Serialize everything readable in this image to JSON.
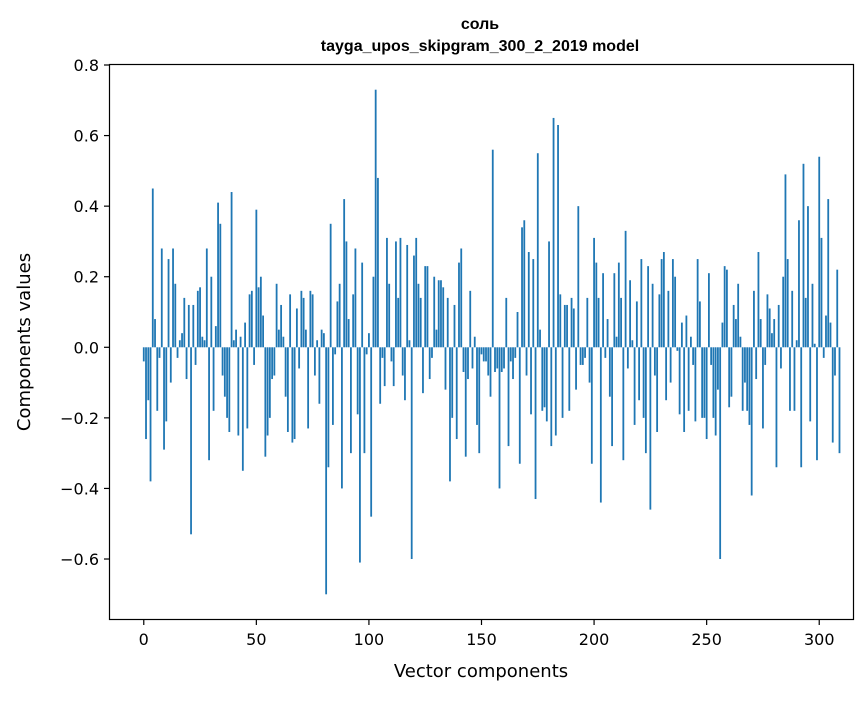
{
  "chart_data": {
    "type": "bar",
    "title": "соль",
    "subtitle": "tayga_upos_skipgram_300_2_2019 model",
    "xlabel": "Vector components",
    "ylabel": "Components values",
    "xlim": [
      -15,
      315
    ],
    "ylim": [
      -0.77,
      0.8
    ],
    "xticks": [
      0,
      50,
      100,
      150,
      200,
      250,
      300
    ],
    "xtick_labels": [
      "0",
      "50",
      "100",
      "150",
      "200",
      "250",
      "300"
    ],
    "yticks": [
      -0.6,
      -0.4,
      -0.2,
      0.0,
      0.2,
      0.4,
      0.6,
      0.8
    ],
    "ytick_labels": [
      "−0.6",
      "−0.4",
      "−0.2",
      "0.0",
      "0.2",
      "0.4",
      "0.6",
      "0.8"
    ],
    "bar_color": "#1f77b4",
    "grid": false,
    "values": [
      -0.04,
      -0.26,
      -0.15,
      -0.38,
      0.45,
      0.08,
      -0.18,
      -0.03,
      0.28,
      -0.29,
      -0.21,
      0.25,
      -0.1,
      0.28,
      0.18,
      -0.03,
      0.02,
      0.04,
      0.14,
      -0.09,
      0.12,
      -0.53,
      0.12,
      -0.05,
      0.16,
      0.17,
      0.03,
      0.02,
      0.28,
      -0.32,
      0.2,
      -0.18,
      0.06,
      0.41,
      0.35,
      -0.08,
      -0.14,
      -0.2,
      -0.24,
      0.44,
      0.02,
      0.05,
      -0.25,
      0.03,
      -0.35,
      0.07,
      -0.23,
      0.15,
      0.16,
      -0.05,
      0.39,
      0.17,
      0.2,
      0.09,
      -0.31,
      -0.25,
      -0.2,
      -0.09,
      -0.08,
      0.18,
      0.05,
      0.12,
      0.03,
      -0.14,
      -0.24,
      0.15,
      -0.27,
      -0.26,
      0.11,
      -0.06,
      0.16,
      0.14,
      0.05,
      -0.23,
      0.16,
      0.15,
      -0.08,
      0.02,
      -0.16,
      0.05,
      0.04,
      -0.7,
      -0.34,
      0.35,
      -0.22,
      -0.02,
      0.13,
      0.18,
      -0.4,
      0.42,
      0.3,
      0.08,
      -0.3,
      0.15,
      0.28,
      -0.19,
      -0.61,
      0.24,
      -0.3,
      -0.02,
      0.04,
      -0.48,
      0.2,
      0.73,
      0.48,
      -0.16,
      -0.03,
      -0.11,
      0.31,
      0.18,
      -0.04,
      -0.11,
      0.3,
      0.14,
      0.31,
      -0.08,
      -0.15,
      0.29,
      0.02,
      -0.6,
      0.26,
      0.31,
      0.18,
      0.14,
      -0.13,
      0.23,
      0.23,
      -0.09,
      -0.03,
      0.2,
      0.05,
      0.19,
      0.19,
      0.17,
      -0.12,
      0.14,
      -0.38,
      -0.2,
      0.12,
      -0.26,
      0.24,
      0.28,
      -0.07,
      -0.31,
      -0.09,
      0.16,
      -0.06,
      0.03,
      -0.22,
      -0.3,
      -0.02,
      -0.04,
      -0.04,
      -0.08,
      -0.14,
      0.56,
      -0.07,
      -0.06,
      -0.4,
      -0.07,
      -0.06,
      0.14,
      -0.28,
      -0.04,
      -0.09,
      -0.03,
      0.1,
      -0.33,
      0.34,
      0.36,
      -0.08,
      0.27,
      -0.19,
      0.25,
      -0.43,
      0.55,
      0.05,
      -0.18,
      -0.17,
      -0.21,
      0.3,
      -0.28,
      0.65,
      -0.25,
      0.63,
      0.15,
      -0.2,
      0.12,
      0.12,
      -0.18,
      0.14,
      0.11,
      -0.12,
      0.4,
      -0.05,
      -0.05,
      -0.03,
      0.14,
      -0.1,
      -0.33,
      0.31,
      0.24,
      0.14,
      -0.44,
      0.21,
      -0.03,
      0.08,
      -0.14,
      -0.28,
      0.21,
      0.03,
      0.24,
      0.14,
      -0.32,
      0.33,
      -0.06,
      0.19,
      0.02,
      -0.22,
      0.13,
      -0.15,
      0.25,
      -0.2,
      -0.3,
      0.23,
      -0.46,
      0.18,
      -0.08,
      -0.24,
      0.15,
      0.25,
      0.27,
      -0.15,
      0.16,
      -0.1,
      0.25,
      0.2,
      -0.01,
      -0.19,
      0.07,
      -0.24,
      0.09,
      -0.18,
      0.03,
      -0.05,
      -0.21,
      0.25,
      0.13,
      -0.2,
      -0.2,
      -0.26,
      0.21,
      -0.05,
      -0.2,
      -0.25,
      -0.12,
      -0.6,
      0.07,
      0.23,
      0.22,
      -0.17,
      -0.14,
      0.12,
      0.08,
      0.18,
      0.03,
      -0.18,
      -0.1,
      -0.18,
      -0.22,
      -0.42,
      0.16,
      -0.09,
      0.27,
      0.08,
      -0.23,
      -0.05,
      0.15,
      0.11,
      0.04,
      0.08,
      -0.34,
      0.12,
      -0.06,
      0.2,
      0.49,
      0.25,
      -0.18,
      0.16,
      -0.18,
      0.02,
      0.36,
      -0.34,
      0.52,
      0.14,
      0.4,
      -0.21,
      0.18,
      0.01,
      -0.32,
      0.54,
      0.31,
      -0.03,
      0.09,
      0.42,
      0.07,
      -0.27,
      -0.08,
      0.22,
      -0.3
    ]
  }
}
